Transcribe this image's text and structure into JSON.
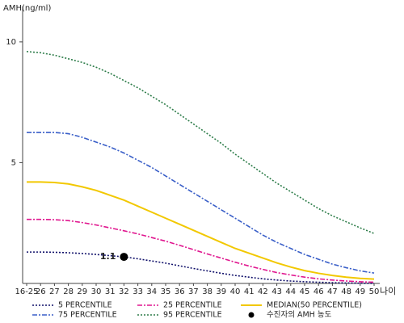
{
  "chart_data": {
    "type": "line",
    "y_label": "AMH(ng/ml)",
    "x_label": "나이",
    "categories": [
      "16-25",
      "26",
      "27",
      "28",
      "29",
      "30",
      "31",
      "32",
      "33",
      "34",
      "35",
      "36",
      "37",
      "38",
      "39",
      "40",
      "41",
      "42",
      "43",
      "44",
      "45",
      "46",
      "47",
      "48",
      "49",
      "50"
    ],
    "ylim": [
      0,
      11.4
    ],
    "yticks": [
      5,
      10
    ],
    "series": [
      {
        "name": "5 PERCENTILE",
        "color": "#10106a",
        "dash": "2 2",
        "values": [
          1.3,
          1.3,
          1.29,
          1.27,
          1.24,
          1.2,
          1.15,
          1.1,
          1.02,
          0.93,
          0.84,
          0.73,
          0.62,
          0.52,
          0.42,
          0.33,
          0.26,
          0.19,
          0.14,
          0.1,
          0.07,
          0.05,
          0.03,
          0.02,
          0.01,
          0.0
        ]
      },
      {
        "name": "25 PERCENTILE",
        "color": "#e0168f",
        "dash": "6 2 2 2",
        "values": [
          2.65,
          2.65,
          2.64,
          2.6,
          2.52,
          2.42,
          2.3,
          2.18,
          2.05,
          1.9,
          1.75,
          1.58,
          1.4,
          1.22,
          1.05,
          0.88,
          0.72,
          0.58,
          0.45,
          0.35,
          0.26,
          0.19,
          0.14,
          0.1,
          0.07,
          0.05
        ]
      },
      {
        "name": "MEDIAN(50 PERCENTILE)",
        "color": "#f2c800",
        "dash": "none",
        "values": [
          4.2,
          4.2,
          4.18,
          4.12,
          4.0,
          3.85,
          3.65,
          3.45,
          3.2,
          2.95,
          2.7,
          2.45,
          2.2,
          1.95,
          1.7,
          1.45,
          1.25,
          1.05,
          0.85,
          0.68,
          0.53,
          0.42,
          0.33,
          0.26,
          0.21,
          0.18
        ]
      },
      {
        "name": "75 PERCENTILE",
        "color": "#3a5fc8",
        "dash": "6 2 2 2",
        "values": [
          6.25,
          6.25,
          6.25,
          6.2,
          6.05,
          5.85,
          5.65,
          5.4,
          5.1,
          4.8,
          4.45,
          4.1,
          3.75,
          3.4,
          3.05,
          2.7,
          2.35,
          2.0,
          1.7,
          1.45,
          1.2,
          1.0,
          0.8,
          0.65,
          0.52,
          0.43
        ]
      },
      {
        "name": "95 PERCENTILE",
        "color": "#2e7d4a",
        "dash": "2 2",
        "values": [
          9.6,
          9.55,
          9.45,
          9.3,
          9.15,
          8.95,
          8.7,
          8.4,
          8.1,
          7.75,
          7.4,
          7.0,
          6.6,
          6.2,
          5.8,
          5.35,
          4.95,
          4.55,
          4.15,
          3.8,
          3.45,
          3.1,
          2.8,
          2.55,
          2.3,
          2.07
        ]
      }
    ],
    "patient": {
      "name": "수진자의 AMH 농도",
      "category": "32",
      "value": 1.1,
      "color": "#000000"
    }
  }
}
